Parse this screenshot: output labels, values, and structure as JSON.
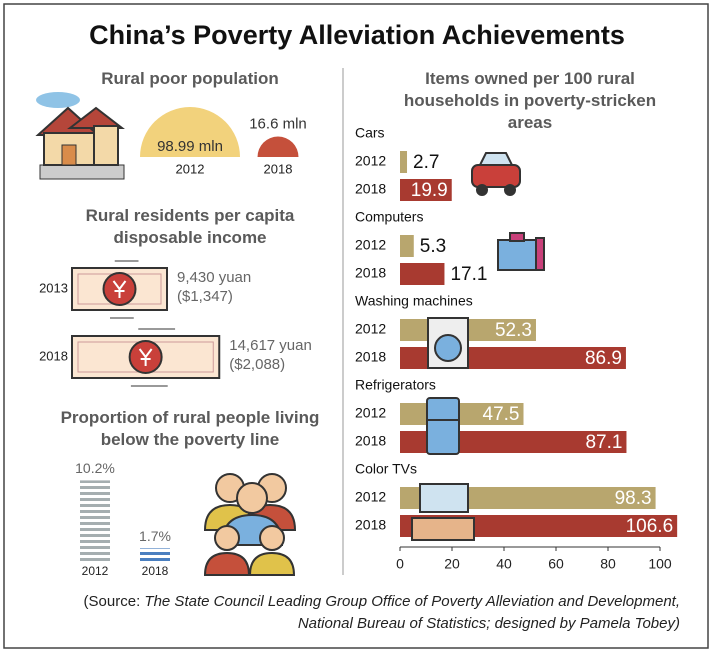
{
  "title": "China’s Poverty Alleviation Achievements",
  "source": {
    "prefix": "(Source:",
    "line1": "The State Council Leading Group Office of Poverty Alleviation and Development,",
    "line2": "National Bureau of Statistics;",
    "credit": "designed by Pamela Tobey)"
  },
  "chart_data": [
    {
      "type": "semicircle",
      "title": "Rural poor population",
      "categories": [
        "2012",
        "2018"
      ],
      "values": [
        98.99,
        16.6
      ],
      "value_labels": [
        "98.99 mln",
        "16.6 mln"
      ],
      "colors": [
        "#f2d27c",
        "#c5503b"
      ]
    },
    {
      "type": "banknote",
      "title": "Rural residents per capita disposable income",
      "categories": [
        "2013",
        "2018"
      ],
      "values": [
        9430,
        14617
      ],
      "value_labels": [
        "9,430 yuan",
        "14,617 yuan"
      ],
      "usd_labels": [
        "($1,347)",
        "($2,088)"
      ]
    },
    {
      "type": "striped-bar",
      "title": "Proportion of rural people living below the poverty line",
      "categories": [
        "2012",
        "2018"
      ],
      "values": [
        10.2,
        1.7
      ],
      "value_labels": [
        "10.2%",
        "1.7%"
      ],
      "colors": [
        "#a5aeb0",
        "#4a7fc0"
      ]
    },
    {
      "type": "hbar",
      "title": "Items owned per 100 rural households in poverty-stricken areas",
      "categories": [
        "Cars",
        "Computers",
        "Washing machines",
        "Refrigerators",
        "Color TVs"
      ],
      "series": [
        {
          "name": "2012",
          "color": "#b8a66e",
          "values": [
            2.7,
            5.3,
            52.3,
            47.5,
            98.3
          ]
        },
        {
          "name": "2018",
          "color": "#a83a30",
          "values": [
            19.9,
            17.1,
            86.9,
            87.1,
            106.6
          ]
        }
      ],
      "xlim": [
        0,
        100
      ],
      "xticks": [
        0,
        20,
        40,
        60,
        80,
        100
      ]
    }
  ]
}
